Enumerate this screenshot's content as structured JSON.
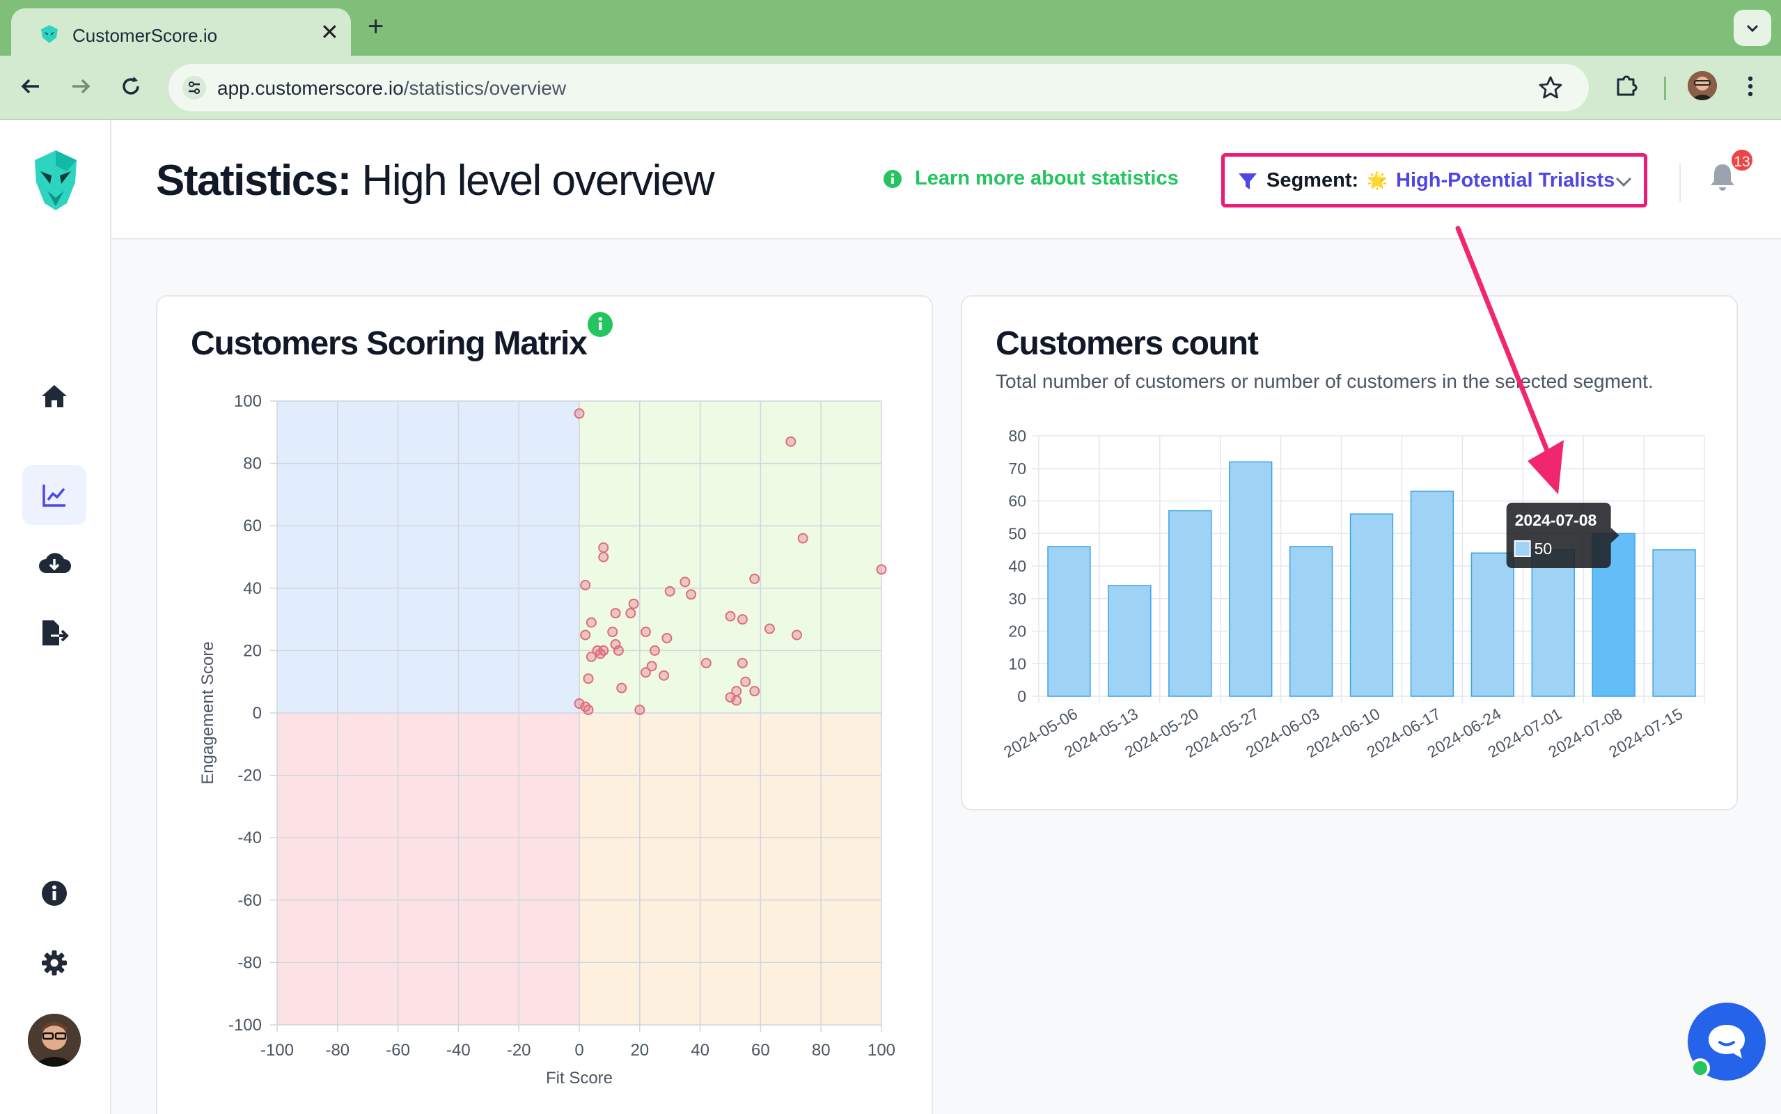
{
  "browser": {
    "tab_title": "CustomerScore.io",
    "url_host": "app.customerscore.io",
    "url_path": "/statistics/overview"
  },
  "header": {
    "title_bold": "Statistics:",
    "title_rest": " High level overview",
    "learn_more": "Learn more about statistics",
    "segment_label": "Segment:",
    "segment_emoji": "🌟",
    "segment_value": "High-Potential Trialists",
    "notifications_count": "13"
  },
  "sidebar": {
    "items": [
      {
        "icon": "home-icon"
      },
      {
        "icon": "chart-line-icon",
        "active": true
      },
      {
        "icon": "cloud-download-icon"
      },
      {
        "icon": "file-export-icon"
      }
    ],
    "bottom": [
      {
        "icon": "info-icon"
      },
      {
        "icon": "gear-icon"
      }
    ]
  },
  "scatter_card": {
    "title": "Customers Scoring Matrix"
  },
  "bar_card": {
    "title": "Customers count",
    "subtitle": "Total number of customers or number of customers in the selected segment."
  },
  "tooltip": {
    "date": "2024-07-08",
    "value": "50"
  },
  "colors": {
    "accent": "#4f46e5",
    "green": "#22c55e",
    "highlight_border": "#ec1b78",
    "bar": "#9fd3f5",
    "bar_active": "#63bdf7",
    "point": "#e26b7d"
  },
  "chart_data": [
    {
      "type": "scatter",
      "title": "Customers Scoring Matrix",
      "xlabel": "Fit Score",
      "ylabel": "Engagement Score",
      "xlim": [
        -100,
        100
      ],
      "ylim": [
        -100,
        100
      ],
      "xticks": [
        -100,
        -80,
        -60,
        -40,
        -20,
        0,
        20,
        40,
        60,
        80,
        100
      ],
      "yticks": [
        100,
        80,
        60,
        40,
        20,
        0,
        -20,
        -40,
        -60,
        -80,
        -100
      ],
      "grid": true,
      "quadrants": {
        "top_left": "#e1edfd",
        "top_right": "#edfbe4",
        "bottom_left": "#fde2e5",
        "bottom_right": "#fdf0df"
      },
      "points": [
        [
          0,
          96
        ],
        [
          70,
          87
        ],
        [
          74,
          56
        ],
        [
          100,
          46
        ],
        [
          8,
          53
        ],
        [
          8,
          50
        ],
        [
          2,
          41
        ],
        [
          58,
          43
        ],
        [
          35,
          42
        ],
        [
          37,
          38
        ],
        [
          30,
          39
        ],
        [
          18,
          35
        ],
        [
          12,
          32
        ],
        [
          17,
          32
        ],
        [
          50,
          31
        ],
        [
          54,
          30
        ],
        [
          63,
          27
        ],
        [
          4,
          29
        ],
        [
          11,
          26
        ],
        [
          22,
          26
        ],
        [
          2,
          25
        ],
        [
          29,
          24
        ],
        [
          72,
          25
        ],
        [
          12,
          22
        ],
        [
          13,
          20
        ],
        [
          6,
          20
        ],
        [
          8,
          20
        ],
        [
          7,
          19
        ],
        [
          4,
          18
        ],
        [
          25,
          20
        ],
        [
          42,
          16
        ],
        [
          54,
          16
        ],
        [
          24,
          15
        ],
        [
          22,
          13
        ],
        [
          28,
          12
        ],
        [
          3,
          11
        ],
        [
          55,
          10
        ],
        [
          14,
          8
        ],
        [
          52,
          7
        ],
        [
          58,
          7
        ],
        [
          50,
          5
        ],
        [
          52,
          4
        ],
        [
          0,
          3
        ],
        [
          2,
          2
        ],
        [
          3,
          1
        ],
        [
          20,
          1
        ]
      ]
    },
    {
      "type": "bar",
      "title": "Customers count",
      "categories": [
        "2024-05-06",
        "2024-05-13",
        "2024-05-20",
        "2024-05-27",
        "2024-06-03",
        "2024-06-10",
        "2024-06-17",
        "2024-06-24",
        "2024-07-01",
        "2024-07-08",
        "2024-07-15"
      ],
      "values": [
        46,
        34,
        57,
        72,
        46,
        56,
        63,
        44,
        45,
        50,
        45
      ],
      "ylim": [
        0,
        80
      ],
      "yticks": [
        80,
        70,
        60,
        50,
        40,
        30,
        20,
        10,
        0
      ],
      "grid": true,
      "highlighted_category": "2024-07-08"
    }
  ]
}
